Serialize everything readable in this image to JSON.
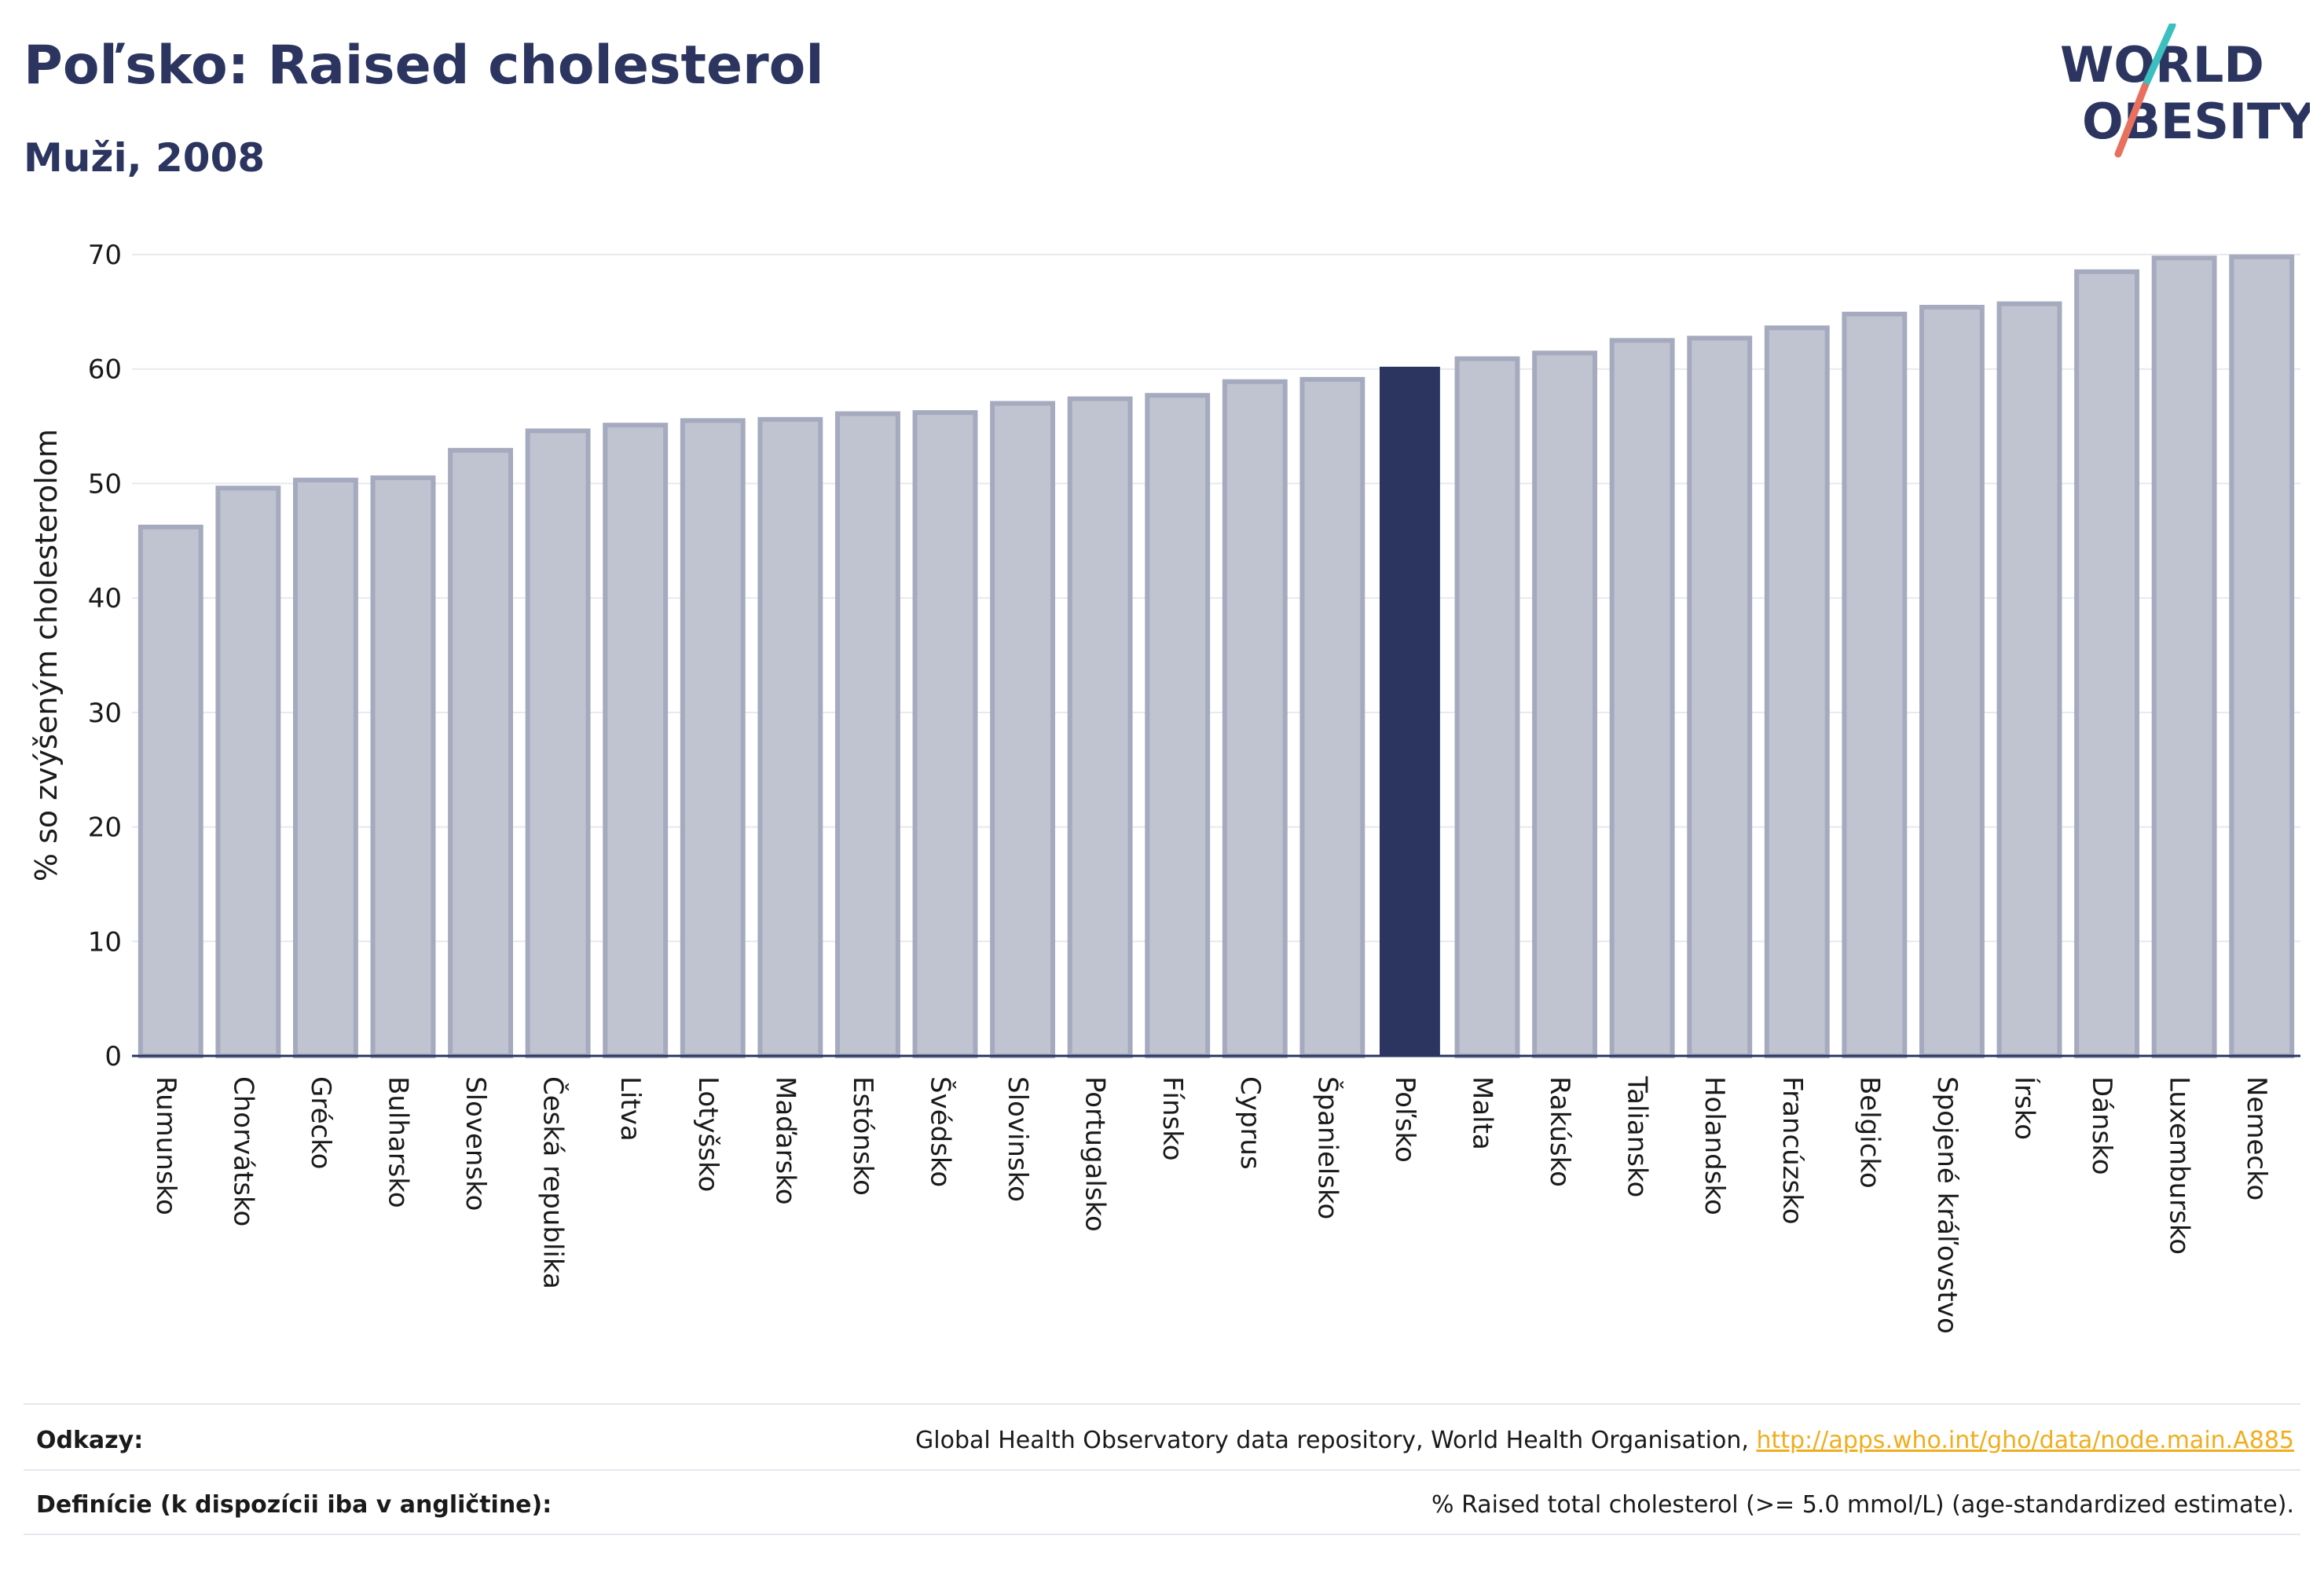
{
  "header": {
    "title": "Poľsko: Raised cholesterol",
    "subtitle": "Muži, 2008"
  },
  "logo": {
    "line1": "WORLD",
    "line2": "OBESITY",
    "colors": {
      "text": "#2b3560",
      "slash_top": "#3bbfbf",
      "slash_bottom": "#e8705f"
    }
  },
  "chart_data": {
    "type": "bar",
    "ylabel": "% so zvýšeným cholesterolom",
    "xlabel": "",
    "ylim": [
      0,
      70
    ],
    "yticks": [
      0,
      10,
      20,
      30,
      40,
      50,
      60,
      70
    ],
    "grid": true,
    "categories": [
      "Rumunsko",
      "Chorvátsko",
      "Grécko",
      "Bulharsko",
      "Slovensko",
      "Česká republika",
      "Litva",
      "Lotyšsko",
      "Maďarsko",
      "Estónsko",
      "Švédsko",
      "Slovinsko",
      "Portugalsko",
      "Fínsko",
      "Cyprus",
      "Španielsko",
      "Poľsko",
      "Malta",
      "Rakúsko",
      "Taliansko",
      "Holandsko",
      "Francúzsko",
      "Belgicko",
      "Spojené kráľovstvo",
      "Írsko",
      "Dánsko",
      "Luxembursko",
      "Nemecko"
    ],
    "values": [
      46.2,
      49.6,
      50.3,
      50.5,
      52.9,
      54.6,
      55.1,
      55.5,
      55.6,
      56.1,
      56.2,
      57.0,
      57.4,
      57.7,
      58.9,
      59.1,
      60.2,
      60.9,
      61.4,
      62.5,
      62.7,
      63.6,
      64.8,
      65.4,
      65.7,
      68.5,
      69.7,
      69.8
    ],
    "highlight": "Poľsko",
    "colors": {
      "bar": "#c0c3d0",
      "bar_edge": "#a5aabe",
      "highlight": "#2b3560",
      "axis": "#2b3560",
      "grid": "#e8e9ee",
      "text": "#1a1a1a"
    }
  },
  "footer": {
    "sources_label": "Odkazy:",
    "sources_text": "Global Health Observatory data repository, World Health Organisation, ",
    "sources_link": "http://apps.who.int/gho/data/node.main.A885",
    "definitions_label": "Definície (k dispozícii iba v angličtine):",
    "definitions_text": "% Raised total cholesterol (>= 5.0 mmol/L) (age-standardized estimate)."
  }
}
